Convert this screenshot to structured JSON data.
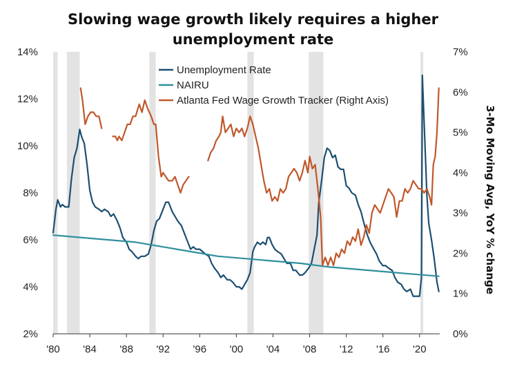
{
  "title_line1": "Slowing wage growth likely requires a higher",
  "title_line2": "unemployment rate",
  "chart_data": {
    "type": "line",
    "title": "Slowing wage growth likely requires a higher unemployment rate",
    "y_left": {
      "label": "",
      "ticks": [
        "2%",
        "4%",
        "6%",
        "8%",
        "10%",
        "12%",
        "14%"
      ],
      "range": [
        2,
        14
      ]
    },
    "y_right": {
      "label": "3-Mo Moving Avg, YoY % change",
      "ticks": [
        "0%",
        "1%",
        "2%",
        "3%",
        "4%",
        "5%",
        "6%",
        "7%"
      ],
      "range": [
        0,
        7
      ]
    },
    "x": {
      "ticks": [
        "'80",
        "'84",
        "'88",
        "'92",
        "'96",
        "'00",
        "'04",
        "'08",
        "'12",
        "'16",
        "'20"
      ],
      "range": [
        1980.0,
        2022.2
      ]
    },
    "recessions": [
      [
        1980.0,
        1980.5
      ],
      [
        1981.5,
        1982.9
      ],
      [
        1990.5,
        1991.2
      ],
      [
        2001.2,
        2001.9
      ],
      [
        2007.9,
        2009.5
      ],
      [
        2020.1,
        2020.4
      ]
    ],
    "legend_position": "top-center",
    "grid": false,
    "series": [
      {
        "name": "Unemployment Rate",
        "color": "#1b4f72",
        "axis": "left",
        "points": [
          [
            1980.0,
            6.3
          ],
          [
            1980.3,
            7.3
          ],
          [
            1980.5,
            7.7
          ],
          [
            1980.8,
            7.4
          ],
          [
            1981.0,
            7.5
          ],
          [
            1981.3,
            7.4
          ],
          [
            1981.7,
            7.4
          ],
          [
            1982.0,
            8.6
          ],
          [
            1982.3,
            9.5
          ],
          [
            1982.6,
            9.9
          ],
          [
            1982.9,
            10.7
          ],
          [
            1983.1,
            10.4
          ],
          [
            1983.4,
            10.1
          ],
          [
            1983.7,
            9.2
          ],
          [
            1984.0,
            8.1
          ],
          [
            1984.3,
            7.6
          ],
          [
            1984.6,
            7.4
          ],
          [
            1985.0,
            7.3
          ],
          [
            1985.3,
            7.2
          ],
          [
            1985.6,
            7.3
          ],
          [
            1986.0,
            7.2
          ],
          [
            1986.3,
            7.0
          ],
          [
            1986.6,
            7.1
          ],
          [
            1987.0,
            6.8
          ],
          [
            1987.3,
            6.5
          ],
          [
            1987.6,
            6.1
          ],
          [
            1988.0,
            5.9
          ],
          [
            1988.3,
            5.6
          ],
          [
            1988.6,
            5.5
          ],
          [
            1989.0,
            5.3
          ],
          [
            1989.3,
            5.2
          ],
          [
            1989.6,
            5.3
          ],
          [
            1990.0,
            5.3
          ],
          [
            1990.4,
            5.4
          ],
          [
            1990.7,
            5.8
          ],
          [
            1991.0,
            6.4
          ],
          [
            1991.3,
            6.8
          ],
          [
            1991.6,
            6.9
          ],
          [
            1992.0,
            7.3
          ],
          [
            1992.3,
            7.6
          ],
          [
            1992.6,
            7.6
          ],
          [
            1993.0,
            7.2
          ],
          [
            1993.3,
            7.0
          ],
          [
            1993.6,
            6.8
          ],
          [
            1994.0,
            6.6
          ],
          [
            1994.3,
            6.3
          ],
          [
            1994.6,
            6.0
          ],
          [
            1995.0,
            5.6
          ],
          [
            1995.3,
            5.7
          ],
          [
            1995.6,
            5.6
          ],
          [
            1996.0,
            5.6
          ],
          [
            1996.3,
            5.5
          ],
          [
            1996.6,
            5.4
          ],
          [
            1997.0,
            5.3
          ],
          [
            1997.3,
            5.0
          ],
          [
            1997.6,
            4.8
          ],
          [
            1998.0,
            4.6
          ],
          [
            1998.3,
            4.4
          ],
          [
            1998.6,
            4.5
          ],
          [
            1999.0,
            4.3
          ],
          [
            1999.3,
            4.3
          ],
          [
            1999.6,
            4.2
          ],
          [
            2000.0,
            4.0
          ],
          [
            2000.3,
            4.0
          ],
          [
            2000.6,
            3.9
          ],
          [
            2000.9,
            4.1
          ],
          [
            2001.2,
            4.3
          ],
          [
            2001.5,
            4.6
          ],
          [
            2001.8,
            5.5
          ],
          [
            2002.0,
            5.7
          ],
          [
            2002.3,
            5.9
          ],
          [
            2002.6,
            5.8
          ],
          [
            2002.9,
            5.9
          ],
          [
            2003.2,
            5.8
          ],
          [
            2003.4,
            6.1
          ],
          [
            2003.6,
            6.1
          ],
          [
            2003.9,
            5.8
          ],
          [
            2004.2,
            5.6
          ],
          [
            2004.5,
            5.5
          ],
          [
            2004.9,
            5.4
          ],
          [
            2005.2,
            5.2
          ],
          [
            2005.5,
            5.0
          ],
          [
            2005.9,
            5.0
          ],
          [
            2006.2,
            4.7
          ],
          [
            2006.5,
            4.7
          ],
          [
            2006.9,
            4.5
          ],
          [
            2007.2,
            4.5
          ],
          [
            2007.5,
            4.6
          ],
          [
            2007.9,
            4.8
          ],
          [
            2008.2,
            5.0
          ],
          [
            2008.5,
            5.6
          ],
          [
            2008.8,
            6.2
          ],
          [
            2009.0,
            7.6
          ],
          [
            2009.3,
            8.5
          ],
          [
            2009.6,
            9.5
          ],
          [
            2009.9,
            9.9
          ],
          [
            2010.2,
            9.8
          ],
          [
            2010.5,
            9.5
          ],
          [
            2010.8,
            9.6
          ],
          [
            2011.1,
            9.1
          ],
          [
            2011.4,
            9.0
          ],
          [
            2011.7,
            9.0
          ],
          [
            2012.0,
            8.3
          ],
          [
            2012.3,
            8.2
          ],
          [
            2012.6,
            8.0
          ],
          [
            2013.0,
            7.9
          ],
          [
            2013.3,
            7.5
          ],
          [
            2013.6,
            7.2
          ],
          [
            2014.0,
            6.6
          ],
          [
            2014.3,
            6.2
          ],
          [
            2014.6,
            5.9
          ],
          [
            2015.0,
            5.6
          ],
          [
            2015.3,
            5.4
          ],
          [
            2015.6,
            5.1
          ],
          [
            2016.0,
            4.9
          ],
          [
            2016.3,
            4.9
          ],
          [
            2016.6,
            4.8
          ],
          [
            2017.0,
            4.7
          ],
          [
            2017.3,
            4.4
          ],
          [
            2017.6,
            4.2
          ],
          [
            2018.0,
            4.1
          ],
          [
            2018.3,
            3.9
          ],
          [
            2018.6,
            3.8
          ],
          [
            2019.0,
            3.9
          ],
          [
            2019.3,
            3.6
          ],
          [
            2019.6,
            3.6
          ],
          [
            2020.0,
            3.6
          ],
          [
            2020.2,
            4.4
          ],
          [
            2020.3,
            13.0
          ],
          [
            2020.5,
            11.0
          ],
          [
            2020.8,
            7.9
          ],
          [
            2021.0,
            6.7
          ],
          [
            2021.3,
            6.0
          ],
          [
            2021.6,
            5.2
          ],
          [
            2021.9,
            4.2
          ],
          [
            2022.1,
            3.8
          ]
        ]
      },
      {
        "name": "NAIRU",
        "color": "#2f8f9d",
        "axis": "left",
        "points": [
          [
            1980.0,
            6.2
          ],
          [
            1983.0,
            6.1
          ],
          [
            1986.0,
            6.0
          ],
          [
            1989.0,
            5.9
          ],
          [
            1992.0,
            5.7
          ],
          [
            1995.0,
            5.5
          ],
          [
            1998.0,
            5.3
          ],
          [
            2001.0,
            5.2
          ],
          [
            2004.0,
            5.1
          ],
          [
            2007.0,
            5.0
          ],
          [
            2010.0,
            4.85
          ],
          [
            2013.0,
            4.75
          ],
          [
            2016.0,
            4.65
          ],
          [
            2019.0,
            4.55
          ],
          [
            2022.1,
            4.45
          ]
        ]
      },
      {
        "name": "Atlanta Fed Wage Growth Tracker (Right Axis)",
        "color": "#c0572b",
        "axis": "right",
        "segments": [
          [
            [
              1983.0,
              6.1
            ],
            [
              1983.2,
              5.8
            ],
            [
              1983.5,
              5.2
            ],
            [
              1983.8,
              5.4
            ],
            [
              1984.1,
              5.5
            ],
            [
              1984.4,
              5.5
            ],
            [
              1984.7,
              5.4
            ],
            [
              1985.0,
              5.4
            ],
            [
              1985.3,
              5.1
            ]
          ],
          [
            [
              1986.5,
              4.9
            ],
            [
              1986.8,
              4.9
            ],
            [
              1987.0,
              4.8
            ],
            [
              1987.2,
              4.9
            ],
            [
              1987.5,
              4.8
            ],
            [
              1987.8,
              5.0
            ],
            [
              1988.1,
              5.2
            ],
            [
              1988.4,
              5.2
            ],
            [
              1988.7,
              5.4
            ],
            [
              1989.0,
              5.4
            ],
            [
              1989.4,
              5.7
            ],
            [
              1989.7,
              5.5
            ],
            [
              1990.0,
              5.8
            ],
            [
              1990.3,
              5.6
            ],
            [
              1990.7,
              5.4
            ],
            [
              1991.0,
              5.2
            ],
            [
              1991.2,
              5.2
            ],
            [
              1991.5,
              4.4
            ],
            [
              1991.8,
              3.9
            ],
            [
              1992.0,
              4.0
            ],
            [
              1992.3,
              3.9
            ],
            [
              1992.6,
              3.8
            ],
            [
              1993.0,
              3.8
            ],
            [
              1993.3,
              3.9
            ],
            [
              1993.6,
              3.7
            ],
            [
              1993.9,
              3.5
            ],
            [
              1994.2,
              3.7
            ],
            [
              1994.5,
              3.8
            ],
            [
              1994.8,
              3.9
            ]
          ],
          [
            [
              1996.9,
              4.3
            ],
            [
              1997.2,
              4.5
            ],
            [
              1997.5,
              4.6
            ],
            [
              1997.8,
              4.8
            ],
            [
              1998.1,
              4.9
            ],
            [
              1998.3,
              5.0
            ],
            [
              1998.5,
              5.4
            ],
            [
              1998.8,
              5.0
            ],
            [
              1999.1,
              5.1
            ],
            [
              1999.4,
              5.2
            ],
            [
              1999.7,
              4.9
            ],
            [
              2000.0,
              5.1
            ],
            [
              2000.3,
              5.0
            ],
            [
              2000.6,
              5.1
            ],
            [
              2000.9,
              4.9
            ],
            [
              2001.2,
              5.1
            ],
            [
              2001.5,
              5.4
            ],
            [
              2001.8,
              5.2
            ],
            [
              2002.1,
              4.9
            ],
            [
              2002.4,
              4.6
            ],
            [
              2002.7,
              4.2
            ],
            [
              2003.0,
              3.8
            ],
            [
              2003.3,
              3.5
            ],
            [
              2003.6,
              3.6
            ],
            [
              2003.9,
              3.3
            ],
            [
              2004.2,
              3.4
            ],
            [
              2004.5,
              3.3
            ],
            [
              2004.8,
              3.6
            ],
            [
              2005.1,
              3.5
            ],
            [
              2005.4,
              3.6
            ],
            [
              2005.7,
              3.9
            ],
            [
              2006.0,
              4.0
            ],
            [
              2006.3,
              4.1
            ],
            [
              2006.6,
              4.0
            ],
            [
              2006.9,
              3.8
            ],
            [
              2007.2,
              4.0
            ],
            [
              2007.5,
              4.3
            ],
            [
              2007.8,
              4.0
            ],
            [
              2008.0,
              4.4
            ],
            [
              2008.3,
              4.1
            ],
            [
              2008.6,
              4.2
            ],
            [
              2008.9,
              3.6
            ],
            [
              2009.2,
              2.9
            ],
            [
              2009.4,
              1.7
            ],
            [
              2009.7,
              1.9
            ],
            [
              2010.0,
              1.7
            ],
            [
              2010.3,
              1.9
            ],
            [
              2010.6,
              1.7
            ],
            [
              2010.9,
              2.0
            ],
            [
              2011.2,
              1.9
            ],
            [
              2011.5,
              2.1
            ],
            [
              2011.8,
              2.0
            ],
            [
              2012.1,
              2.3
            ],
            [
              2012.4,
              2.2
            ],
            [
              2012.7,
              2.4
            ],
            [
              2013.0,
              2.3
            ],
            [
              2013.3,
              2.6
            ],
            [
              2013.6,
              2.2
            ],
            [
              2013.9,
              2.4
            ],
            [
              2014.2,
              2.7
            ],
            [
              2014.5,
              2.5
            ],
            [
              2014.8,
              3.0
            ],
            [
              2015.1,
              3.2
            ],
            [
              2015.4,
              3.1
            ],
            [
              2015.7,
              3.0
            ],
            [
              2016.0,
              3.2
            ],
            [
              2016.3,
              3.4
            ],
            [
              2016.6,
              3.6
            ],
            [
              2016.9,
              3.5
            ],
            [
              2017.2,
              3.4
            ],
            [
              2017.5,
              2.9
            ],
            [
              2017.8,
              3.3
            ],
            [
              2018.1,
              3.3
            ],
            [
              2018.4,
              3.6
            ],
            [
              2018.7,
              3.5
            ],
            [
              2019.0,
              3.6
            ],
            [
              2019.3,
              3.8
            ],
            [
              2019.6,
              3.7
            ],
            [
              2019.9,
              3.6
            ],
            [
              2020.2,
              3.6
            ],
            [
              2020.5,
              3.5
            ],
            [
              2020.8,
              3.6
            ],
            [
              2021.1,
              3.4
            ],
            [
              2021.3,
              3.2
            ],
            [
              2021.5,
              4.2
            ],
            [
              2021.7,
              4.4
            ],
            [
              2021.9,
              5.0
            ],
            [
              2022.1,
              6.1
            ]
          ]
        ]
      }
    ]
  }
}
